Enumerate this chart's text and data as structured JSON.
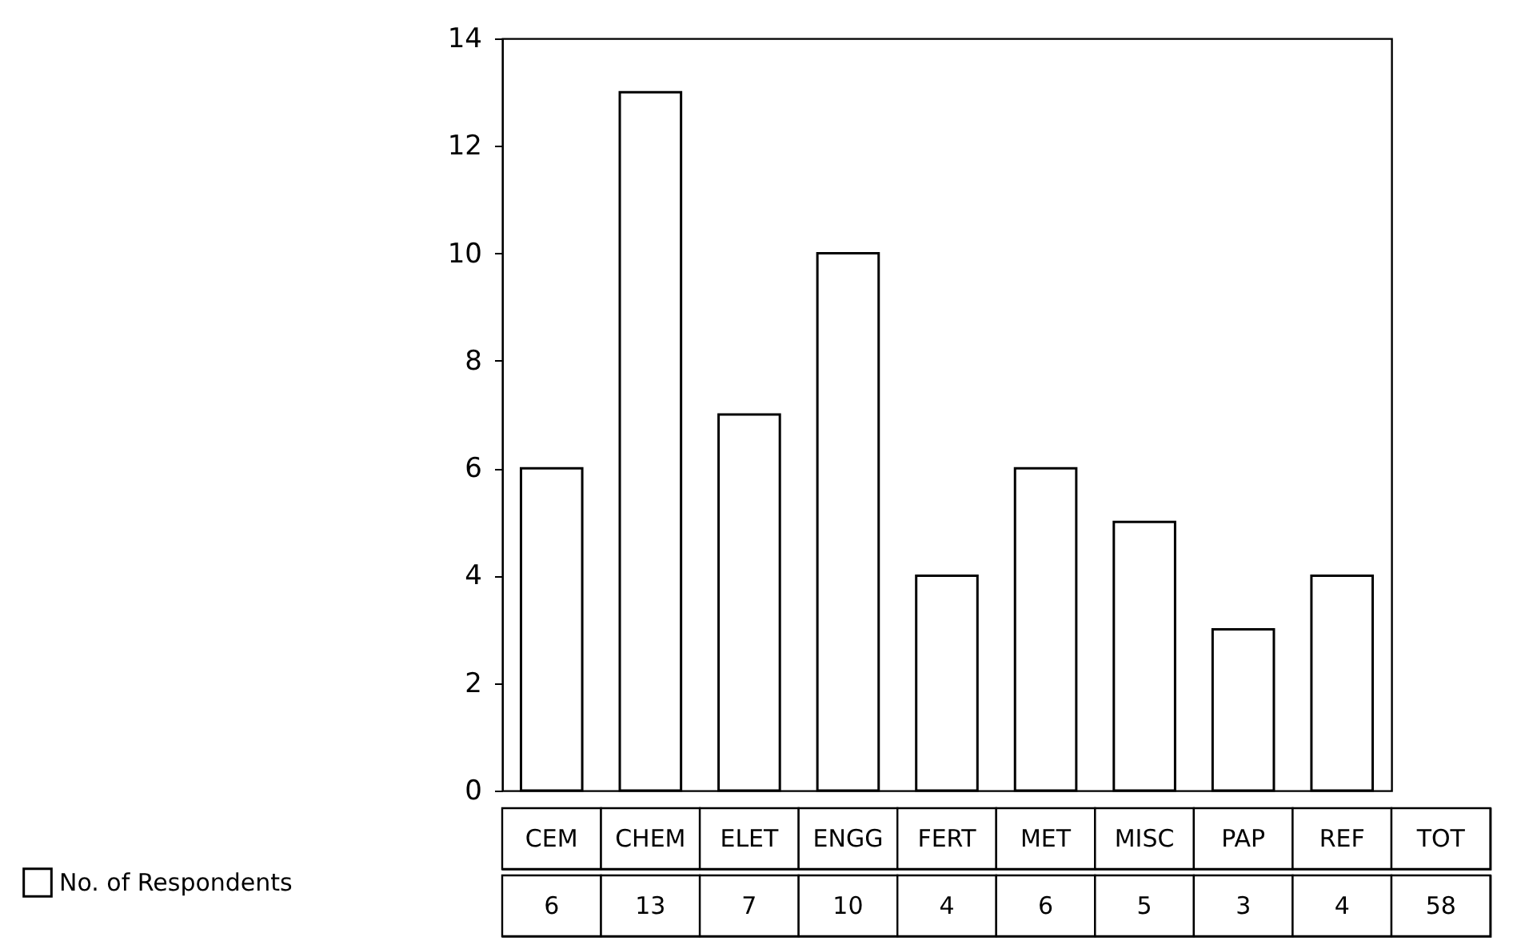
{
  "chart_data": {
    "type": "bar",
    "categories": [
      "CEM",
      "CHEM",
      "ELET",
      "ENGG",
      "FERT",
      "MET",
      "MISC",
      "PAP",
      "REF"
    ],
    "series": [
      {
        "name": "No. of Respondents",
        "color": "#ffffff",
        "values": [
          6,
          13,
          7,
          10,
          4,
          6,
          5,
          3,
          4
        ]
      }
    ],
    "data_labels": true,
    "annotations": [
      "TOT",
      "58"
    ],
    "ylim": [
      0,
      14
    ],
    "yticks": [
      0,
      2,
      4,
      6,
      8,
      10,
      12,
      14
    ],
    "grid": false,
    "legend": "bottom left"
  }
}
